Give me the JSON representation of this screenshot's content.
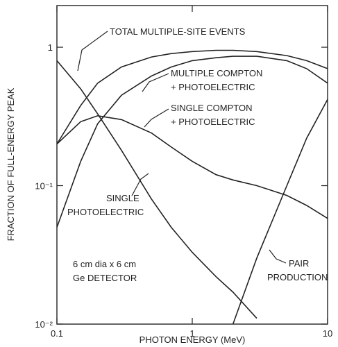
{
  "chart_data": {
    "type": "line",
    "x_label": "PHOTON ENERGY (MeV)",
    "y_label": "FRACTION OF FULL-ENERGY PEAK",
    "xscale": "log",
    "yscale": "log",
    "xlim": [
      0.1,
      10
    ],
    "ylim": [
      0.01,
      2
    ],
    "xticks": [
      0.1,
      1,
      10
    ],
    "yticks": [
      1,
      {
        "value": 0.1,
        "label": "10⁻¹"
      },
      {
        "value": 0.01,
        "label": "10⁻²"
      }
    ],
    "x": [
      0.1,
      0.15,
      0.2,
      0.3,
      0.5,
      0.7,
      1,
      1.5,
      2,
      3,
      5,
      7,
      10
    ],
    "series": [
      {
        "name": [
          "TOTAL MULTIPLE-SITE EVENTS"
        ],
        "color": "#222222",
        "values": [
          0.2,
          0.38,
          0.55,
          0.72,
          0.85,
          0.9,
          0.93,
          0.95,
          0.95,
          0.93,
          0.87,
          0.8,
          0.7
        ]
      },
      {
        "name": [
          "MULTIPLE COMPTON",
          "+ PHOTOELECTRIC"
        ],
        "color": "#222222",
        "values": [
          0.05,
          0.15,
          0.28,
          0.45,
          0.62,
          0.72,
          0.8,
          0.84,
          0.86,
          0.86,
          0.8,
          0.7,
          0.55
        ]
      },
      {
        "name": [
          "SINGLE COMPTON",
          "+ PHOTOELECTRIC"
        ],
        "color": "#222222",
        "values": [
          0.2,
          0.29,
          0.32,
          0.3,
          0.24,
          0.19,
          0.15,
          0.12,
          0.11,
          0.1,
          0.085,
          0.072,
          0.058
        ]
      },
      {
        "name": [
          "SINGLE",
          "PHOTOELECTRIC"
        ],
        "color": "#222222",
        "values": [
          0.8,
          0.5,
          0.33,
          0.18,
          0.08,
          0.05,
          0.033,
          0.022,
          0.017,
          0.011,
          null,
          null,
          null
        ]
      },
      {
        "name": [
          "PAIR",
          "PRODUCTION"
        ],
        "color": "#222222",
        "values": [
          null,
          null,
          null,
          null,
          null,
          null,
          null,
          null,
          0.01,
          0.03,
          0.1,
          0.22,
          0.42
        ]
      }
    ],
    "annotations": [
      "6 cm dia x 6 cm",
      "Ge DETECTOR"
    ]
  }
}
